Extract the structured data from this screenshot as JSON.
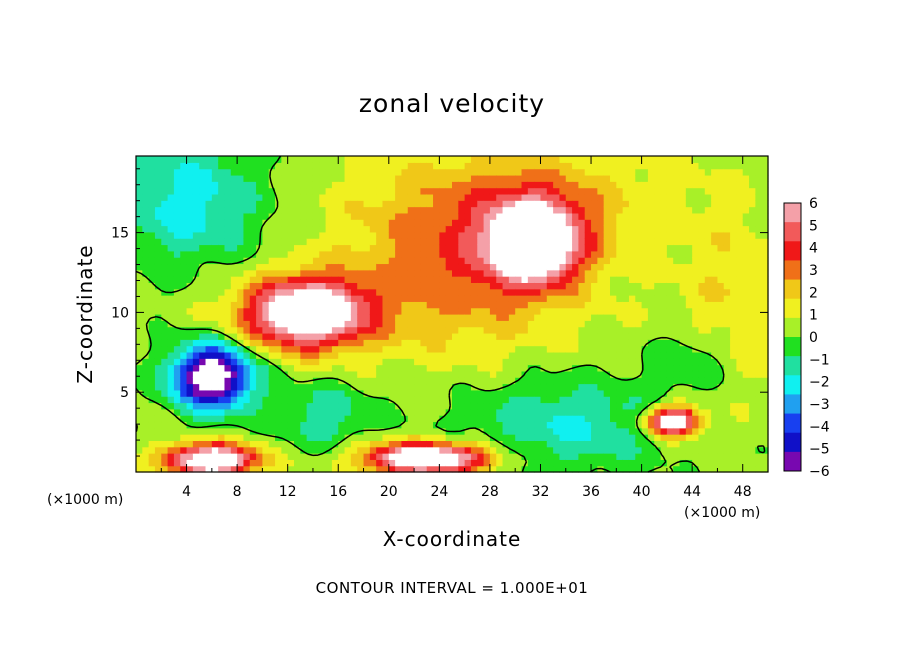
{
  "chart_data": {
    "type": "heatmap",
    "title": "zonal velocity",
    "xlabel": "X-coordinate",
    "ylabel": "Z-coordinate",
    "x_unit_left": "(×1000 m)",
    "x_unit_right": "(×1000 m)",
    "footnote": "CONTOUR INTERVAL = 1.000E+01",
    "xlim": [
      0,
      50
    ],
    "ylim": [
      0,
      19.8
    ],
    "x_ticks": [
      "4",
      "8",
      "12",
      "16",
      "20",
      "24",
      "28",
      "32",
      "36",
      "40",
      "44",
      "48"
    ],
    "y_ticks": [
      "5",
      "10",
      "15"
    ],
    "colorbar": {
      "range": [
        -6,
        6
      ],
      "ticks": [
        "6",
        "5",
        "4",
        "3",
        "2",
        "1",
        "0",
        "-1",
        "-2",
        "-3",
        "-4",
        "-5",
        "-6"
      ],
      "colors": [
        "#f4a0a8",
        "#f25a5a",
        "#f01818",
        "#f07018",
        "#f0c818",
        "#f0f020",
        "#a8f028",
        "#20e020",
        "#20e0a0",
        "#10f0f0",
        "#20a0f0",
        "#1840f0",
        "#1010c8",
        "#7808b0"
      ]
    },
    "features": [
      {
        "label": "positive core (>6)",
        "cx": 13.5,
        "cz": 10.0,
        "sx": 5.0,
        "sz": 2.2,
        "v": 8
      },
      {
        "label": "positive core (>6)",
        "cx": 31.5,
        "cz": 14.5,
        "sx": 3.5,
        "sz": 2.5,
        "v": 8
      },
      {
        "label": "negative core (<-6)",
        "cx": 6.0,
        "cz": 6.0,
        "sx": 3.2,
        "sz": 2.0,
        "v": -8
      },
      {
        "label": "positive core (>6)",
        "cx": 42.5,
        "cz": 3.2,
        "sx": 2.0,
        "sz": 0.9,
        "v": 8
      },
      {
        "label": "positive core (>6)",
        "cx": 6.0,
        "cz": 0.8,
        "sx": 3.5,
        "sz": 1.0,
        "v": 8
      },
      {
        "label": "positive core (>6)",
        "cx": 23.0,
        "cz": 0.9,
        "sx": 5.0,
        "sz": 1.0,
        "v": 8
      }
    ]
  }
}
